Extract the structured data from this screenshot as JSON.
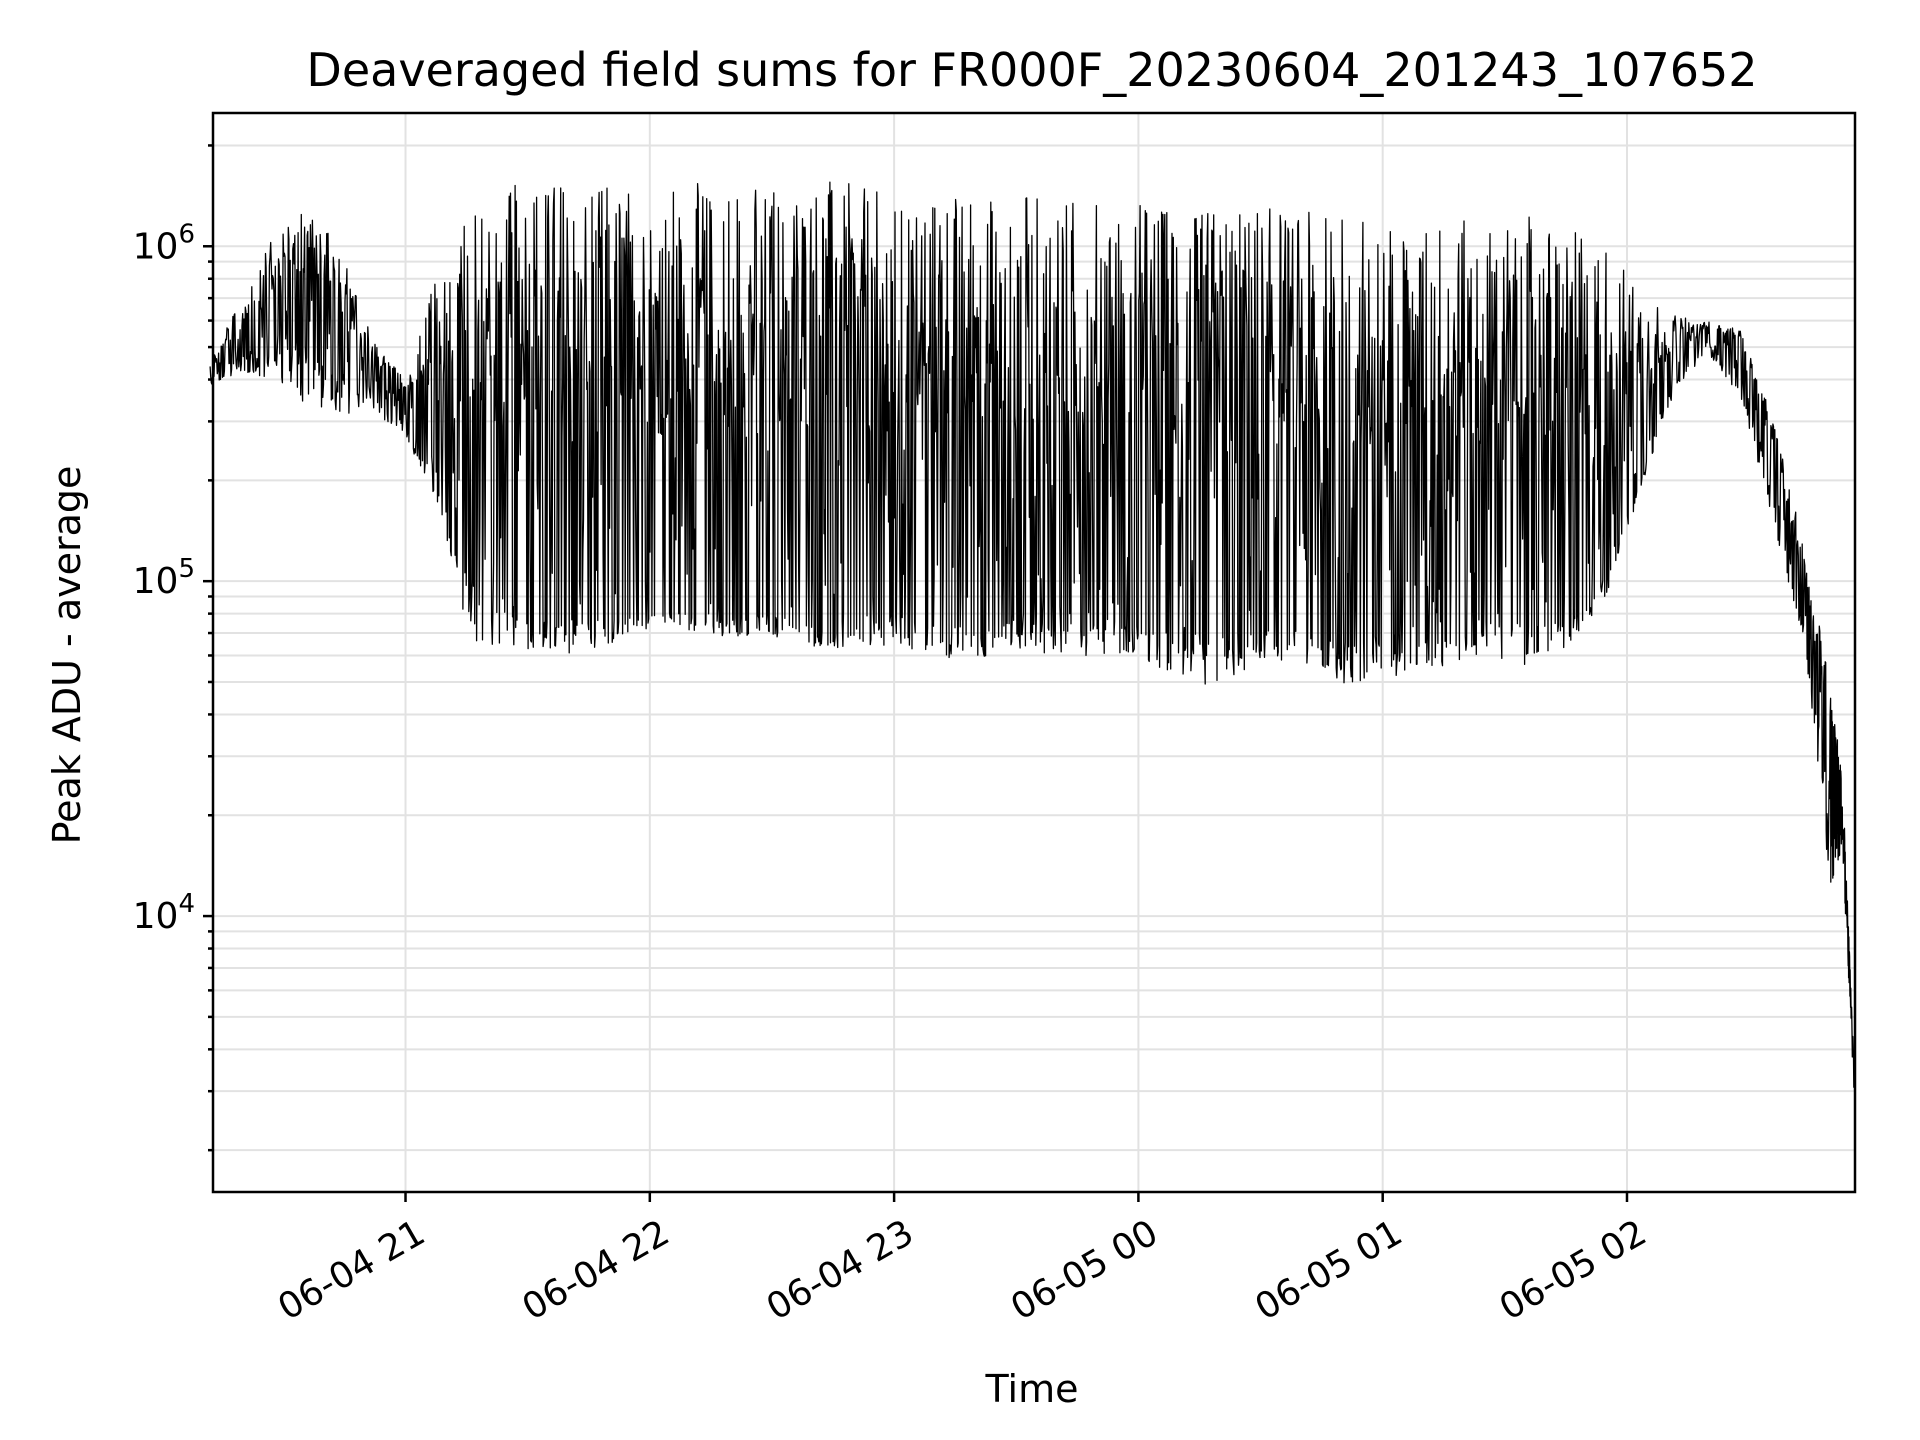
{
  "chart_data": {
    "type": "line",
    "title": "Deaveraged field sums for FR000F_20230604_201243_107652",
    "xlabel": "Time",
    "ylabel": "Peak ADU - average",
    "yscale": "log",
    "ylim": [
      1500,
      2500000
    ],
    "xlim": [
      "2023-06-04 20:12:43",
      "2023-06-05 02:56:00"
    ],
    "grid": true,
    "x_ticks": [
      {
        "value": "2023-06-04 21:00",
        "label": "06-04 21"
      },
      {
        "value": "2023-06-04 22:00",
        "label": "06-04 22"
      },
      {
        "value": "2023-06-04 23:00",
        "label": "06-04 23"
      },
      {
        "value": "2023-06-05 00:00",
        "label": "06-05 00"
      },
      {
        "value": "2023-06-05 01:00",
        "label": "06-05 01"
      },
      {
        "value": "2023-06-05 02:00",
        "label": "06-05 02"
      }
    ],
    "y_ticks": [
      {
        "value": 10000,
        "base": "10",
        "exp": "4"
      },
      {
        "value": 100000,
        "base": "10",
        "exp": "5"
      },
      {
        "value": 1000000,
        "base": "10",
        "exp": "6"
      }
    ],
    "series_color": "#000000",
    "series": [
      {
        "x": [
          "2023-06-04 20:12",
          "2023-06-04 20:20",
          "2023-06-04 20:28",
          "2023-06-04 20:36",
          "2023-06-04 20:44",
          "2023-06-04 20:52",
          "2023-06-04 21:00",
          "2023-06-04 21:08",
          "2023-06-04 21:16",
          "2023-06-04 21:24",
          "2023-06-04 21:32",
          "2023-06-04 21:40",
          "2023-06-04 21:48",
          "2023-06-04 21:56",
          "2023-06-04 22:04",
          "2023-06-04 22:12",
          "2023-06-04 22:20",
          "2023-06-04 22:28",
          "2023-06-04 22:36",
          "2023-06-04 22:44",
          "2023-06-04 22:52",
          "2023-06-04 23:00",
          "2023-06-04 23:08",
          "2023-06-04 23:16",
          "2023-06-04 23:24",
          "2023-06-04 23:32",
          "2023-06-04 23:40",
          "2023-06-04 23:48",
          "2023-06-04 23:56",
          "2023-06-05 00:04",
          "2023-06-05 00:12",
          "2023-06-05 00:20",
          "2023-06-05 00:28",
          "2023-06-05 00:36",
          "2023-06-05 00:44",
          "2023-06-05 00:52",
          "2023-06-05 01:00",
          "2023-06-05 01:08",
          "2023-06-05 01:16",
          "2023-06-05 01:24",
          "2023-06-05 01:32",
          "2023-06-05 01:40",
          "2023-06-05 01:48",
          "2023-06-05 01:56",
          "2023-06-05 02:04",
          "2023-06-05 02:12",
          "2023-06-05 02:20",
          "2023-06-05 02:28",
          "2023-06-05 02:36",
          "2023-06-05 02:44",
          "2023-06-05 02:50",
          "2023-06-05 02:53",
          "2023-06-05 02:56"
        ],
        "y": [
          450000,
          500000,
          560000,
          620000,
          480000,
          420000,
          350000,
          200000,
          150000,
          110000,
          95000,
          90000,
          88000,
          85000,
          85000,
          87000,
          86000,
          88000,
          86000,
          86000,
          87000,
          90000,
          88000,
          86000,
          88000,
          90000,
          88000,
          87000,
          85000,
          85000,
          88000,
          88000,
          86000,
          84000,
          80000,
          80000,
          88000,
          90000,
          92000,
          92000,
          88000,
          87000,
          90000,
          120000,
          250000,
          400000,
          560000,
          500000,
          220000,
          80000,
          30000,
          22000,
          3000
        ],
        "y_high": [
          460000,
          700000,
          1100000,
          1300000,
          1000000,
          520000,
          400000,
          850000,
          1300000,
          1500000,
          1600000,
          1600000,
          1550000,
          1500000,
          1550000,
          1550000,
          1550000,
          1550000,
          1500000,
          1600000,
          1500000,
          1450000,
          1450000,
          1450000,
          1450000,
          1450000,
          1400000,
          1400000,
          1350000,
          1350000,
          1300000,
          1300000,
          1350000,
          1300000,
          1250000,
          1250000,
          1200000,
          1200000,
          1200000,
          1200000,
          1300000,
          1200000,
          1100000,
          1000000,
          700000,
          620000,
          600000,
          560000,
          300000,
          120000,
          50000,
          25000,
          3000
        ],
        "y_low": [
          380000,
          420000,
          400000,
          330000,
          310000,
          320000,
          270000,
          170000,
          60000,
          65000,
          62000,
          60000,
          62000,
          70000,
          75000,
          70000,
          68000,
          70000,
          65000,
          62000,
          63000,
          65000,
          60000,
          58000,
          60000,
          62000,
          60000,
          60000,
          60000,
          55000,
          50000,
          48000,
          55000,
          58000,
          55000,
          47000,
          50000,
          55000,
          55000,
          60000,
          55000,
          58000,
          65000,
          95000,
          200000,
          380000,
          480000,
          350000,
          150000,
          60000,
          12000,
          15000,
          2500
        ]
      }
    ]
  }
}
